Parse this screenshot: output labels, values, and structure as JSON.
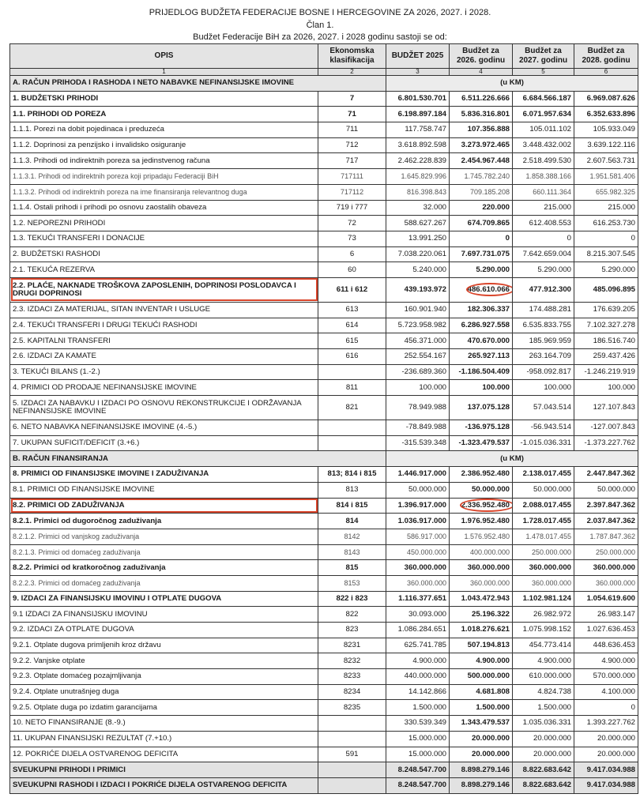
{
  "title": "PRIJEDLOG BUDŽETA FEDERACIJE BOSNE I HERCEGOVINE ZA 2026, 2027. i 2028.",
  "article": "Član 1.",
  "subtitle": "Budžet Federacije BiH za 2026, 2027. i 2028 godinu sastoji se od:",
  "highlight_color": "#d9452b",
  "headers": [
    "OPIS",
    "Ekonomska klasifikacija",
    "BUDŽET 2025",
    "Budžet za 2026. godinu",
    "Budžet za 2027. godinu",
    "Budžet za 2028. godinu"
  ],
  "column_numbers": [
    "1",
    "2",
    "3",
    "4",
    "5",
    "6"
  ],
  "rows": [
    {
      "type": "section",
      "label": "A. RAČUN PRIHODA I RASHODA I NETO NABAVKE NEFINANSIJSKE IMOVINE",
      "unit": "(u KM)"
    },
    {
      "style": "b",
      "label": "1.  BUDŽETSKI PRIHODI",
      "code": "7",
      "values": [
        "6.801.530.701",
        "6.511.226.666",
        "6.684.566.187",
        "6.969.087.626"
      ]
    },
    {
      "style": "b",
      "label": "1.1. PRIHODI OD POREZA",
      "code": "71",
      "values": [
        "6.198.897.184",
        "5.836.316.801",
        "6.071.957.634",
        "6.352.633.896"
      ]
    },
    {
      "style": "n",
      "label": "1.1.1. Porezi na dobit pojedinaca i preduzeća",
      "code": "711",
      "values": [
        "117.758.747",
        "107.356.888",
        "105.011.102",
        "105.933.049"
      ]
    },
    {
      "style": "n",
      "label": "1.1.2. Doprinosi za penzijsko i invalidsko osiguranje",
      "code": "712",
      "values": [
        "3.618.892.598",
        "3.273.972.465",
        "3.448.432.002",
        "3.639.122.116"
      ]
    },
    {
      "style": "n",
      "label": "1.1.3. Prihodi od indirektnih poreza sa jedinstvenog računa",
      "code": "717",
      "values": [
        "2.462.228.839",
        "2.454.967.448",
        "2.518.499.530",
        "2.607.563.731"
      ]
    },
    {
      "style": "l",
      "label": "1.1.3.1. Prihodi od indirektnih poreza koji pripadaju Federaciji BiH",
      "code": "717111",
      "values": [
        "1.645.829.996",
        "1.745.782.240",
        "1.858.388.166",
        "1.951.581.406"
      ]
    },
    {
      "style": "l",
      "label": "1.1.3.2. Prihodi od indirektnih poreza na ime finansiranja relevantnog duga",
      "code": "717112",
      "values": [
        "816.398.843",
        "709.185.208",
        "660.111.364",
        "655.982.325"
      ]
    },
    {
      "style": "n",
      "label": "1.1.4. Ostali prihodi i prihodi po osnovu zaostalih obaveza",
      "code": "719 i 777",
      "values": [
        "32.000",
        "220.000",
        "215.000",
        "215.000"
      ]
    },
    {
      "style": "n",
      "label": "1.2. NEPOREZNI PRIHODI",
      "code": "72",
      "values": [
        "588.627.267",
        "674.709.865",
        "612.408.553",
        "616.253.730"
      ]
    },
    {
      "style": "n",
      "label": "1.3. TEKUĆI TRANSFERI I DONACIJE",
      "code": "73",
      "values": [
        "13.991.250",
        "0",
        "0",
        "0"
      ]
    },
    {
      "style": "n",
      "label": "2. BUDŽETSKI RASHODI",
      "code": "6",
      "values": [
        "7.038.220.061",
        "7.697.731.075",
        "7.642.659.004",
        "8.215.307.545"
      ]
    },
    {
      "style": "n",
      "label": "2.1. TEKUĆA REZERVA",
      "code": "60",
      "values": [
        "5.240.000",
        "5.290.000",
        "5.290.000",
        "5.290.000"
      ]
    },
    {
      "style": "b",
      "tall": true,
      "highlighted": true,
      "label": "2.2. PLAĆE, NAKNADE TROŠKOVA ZAPOSLENIH, DOPRINOSI POSLODAVCA I DRUGI DOPRINOSI",
      "code": "611 i 612",
      "values": [
        "439.193.972",
        "486.610.066",
        "477.912.300",
        "485.096.895"
      ]
    },
    {
      "style": "n",
      "label": "2.3. IZDACI ZA MATERIJAL, SITAN INVENTAR I USLUGE",
      "code": "613",
      "values": [
        "160.901.940",
        "182.306.337",
        "174.488.281",
        "176.639.205"
      ]
    },
    {
      "style": "n",
      "label": "2.4. TEKUĆI TRANSFERI I DRUGI TEKUĆI RASHODI",
      "code": "614",
      "values": [
        "5.723.958.982",
        "6.286.927.558",
        "6.535.833.755",
        "7.102.327.278"
      ]
    },
    {
      "style": "n",
      "label": "2.5. KAPITALNI TRANSFERI",
      "code": "615",
      "values": [
        "456.371.000",
        "470.670.000",
        "185.969.959",
        "186.516.740"
      ]
    },
    {
      "style": "n",
      "label": "2.6. IZDACI ZA KAMATE",
      "code": "616",
      "values": [
        "252.554.167",
        "265.927.113",
        "263.164.709",
        "259.437.426"
      ]
    },
    {
      "style": "n",
      "label": "3. TEKUĆI BILANS (1.-2.)",
      "code": "",
      "values": [
        "-236.689.360",
        "-1.186.504.409",
        "-958.092.817",
        "-1.246.219.919"
      ]
    },
    {
      "style": "n",
      "label": "4. PRIMICI OD PRODAJE NEFINANSIJSKE IMOVINE",
      "code": "811",
      "values": [
        "100.000",
        "100.000",
        "100.000",
        "100.000"
      ]
    },
    {
      "style": "n",
      "tall": true,
      "label": "5. IZDACI ZA NABAVKU I IZDACI PO OSNOVU REKONSTRUKCIJE I ODRŽAVANJA NEFINANSIJSKE IMOVINE",
      "code": "821",
      "values": [
        "78.949.988",
        "137.075.128",
        "57.043.514",
        "127.107.843"
      ]
    },
    {
      "style": "n",
      "label": "6. NETO NABAVKA NEFINANSIJSKE IMOVINE (4.-5.)",
      "code": "",
      "values": [
        "-78.849.988",
        "-136.975.128",
        "-56.943.514",
        "-127.007.843"
      ]
    },
    {
      "style": "n",
      "label": "7. UKUPAN SUFICIT/DEFICIT (3.+6.)",
      "code": "",
      "values": [
        "-315.539.348",
        "-1.323.479.537",
        "-1.015.036.331",
        "-1.373.227.762"
      ]
    },
    {
      "type": "section",
      "label": "B. RAČUN FINANSIRANJA",
      "unit": "(u KM)"
    },
    {
      "style": "b",
      "label": "8. PRIMICI OD FINANSIJSKE IMOVINE I ZADUŽIVANJA",
      "code": "813; 814 i 815",
      "values": [
        "1.446.917.000",
        "2.386.952.480",
        "2.138.017.455",
        "2.447.847.362"
      ]
    },
    {
      "style": "n",
      "label": "8.1. PRIMICI OD FINANSIJSKE IMOVINE",
      "code": "813",
      "values": [
        "50.000.000",
        "50.000.000",
        "50.000.000",
        "50.000.000"
      ]
    },
    {
      "style": "b",
      "highlighted": true,
      "label": "8.2. PRIMICI OD ZADUŽIVANJA",
      "code": "814 i 815",
      "values": [
        "1.396.917.000",
        "2.336.952.480",
        "2.088.017.455",
        "2.397.847.362"
      ]
    },
    {
      "style": "b",
      "label": "8.2.1. Primici od dugoročnog zaduživanja",
      "code": "814",
      "values": [
        "1.036.917.000",
        "1.976.952.480",
        "1.728.017.455",
        "2.037.847.362"
      ]
    },
    {
      "style": "l",
      "label": "8.2.1.2. Primici od vanjskog zaduživanja",
      "code": "8142",
      "values": [
        "586.917.000",
        "1.576.952.480",
        "1.478.017.455",
        "1.787.847.362"
      ]
    },
    {
      "style": "l",
      "label": "8.2.1.3. Primici od domaćeg zaduživanja",
      "code": "8143",
      "values": [
        "450.000.000",
        "400.000.000",
        "250.000.000",
        "250.000.000"
      ]
    },
    {
      "style": "b",
      "label": "8.2.2. Primici od kratkoročnog zaduživanja",
      "code": "815",
      "values": [
        "360.000.000",
        "360.000.000",
        "360.000.000",
        "360.000.000"
      ]
    },
    {
      "style": "l",
      "label": "8.2.2.3. Primici od domaćeg zaduživanja",
      "code": "8153",
      "values": [
        "360.000.000",
        "360.000.000",
        "360.000.000",
        "360.000.000"
      ]
    },
    {
      "style": "b",
      "label": "9. IZDACI ZA FINANSIJSKU IMOVINU I OTPLATE DUGOVA",
      "code": "822 i 823",
      "values": [
        "1.116.377.651",
        "1.043.472.943",
        "1.102.981.124",
        "1.054.619.600"
      ]
    },
    {
      "style": "n",
      "label": "9.1 IZDACI ZA FINANSIJSKU IMOVINU",
      "code": "822",
      "values": [
        "30.093.000",
        "25.196.322",
        "26.982.972",
        "26.983.147"
      ]
    },
    {
      "style": "n",
      "label": "9.2. IZDACI ZA OTPLATE DUGOVA",
      "code": "823",
      "values": [
        "1.086.284.651",
        "1.018.276.621",
        "1.075.998.152",
        "1.027.636.453"
      ]
    },
    {
      "style": "n",
      "label": "9.2.1. Otplate dugova primljenih kroz državu",
      "code": "8231",
      "values": [
        "625.741.785",
        "507.194.813",
        "454.773.414",
        "448.636.453"
      ]
    },
    {
      "style": "n",
      "label": "9.2.2. Vanjske otplate",
      "code": "8232",
      "values": [
        "4.900.000",
        "4.900.000",
        "4.900.000",
        "4.900.000"
      ]
    },
    {
      "style": "n",
      "label": "9.2.3. Otplate domaćeg pozajmljivanja",
      "code": "8233",
      "values": [
        "440.000.000",
        "500.000.000",
        "610.000.000",
        "570.000.000"
      ]
    },
    {
      "style": "n",
      "label": "9.2.4. Otplate unutrašnjeg duga",
      "code": "8234",
      "values": [
        "14.142.866",
        "4.681.808",
        "4.824.738",
        "4.100.000"
      ]
    },
    {
      "style": "n",
      "label": "9.2.5. Otplate duga po izdatim garancijama",
      "code": "8235",
      "values": [
        "1.500.000",
        "1.500.000",
        "1.500.000",
        "0"
      ]
    },
    {
      "style": "n",
      "label": "10. NETO FINANSIRANJE (8.-9.)",
      "code": "",
      "values": [
        "330.539.349",
        "1.343.479.537",
        "1.035.036.331",
        "1.393.227.762"
      ]
    },
    {
      "style": "n",
      "label": "11. UKUPAN FINANSIJSKI REZULTAT (7.+10.)",
      "code": "",
      "values": [
        "15.000.000",
        "20.000.000",
        "20.000.000",
        "20.000.000"
      ]
    },
    {
      "style": "n",
      "label": "12. POKRIĆE DIJELA OSTVARENOG DEFICITA",
      "code": "591",
      "values": [
        "15.000.000",
        "20.000.000",
        "20.000.000",
        "20.000.000"
      ]
    },
    {
      "type": "total",
      "label": "SVEUKUPNI PRIHODI I PRIMICI",
      "code": "",
      "values": [
        "8.248.547.700",
        "8.898.279.146",
        "8.822.683.642",
        "9.417.034.988"
      ]
    },
    {
      "type": "total",
      "label": "SVEUKUPNI RASHODI I IZDACI I POKRIĆE DIJELA OSTVARENOG DEFICITA",
      "code": "",
      "values": [
        "8.248.547.700",
        "8.898.279.146",
        "8.822.683.642",
        "9.417.034.988"
      ]
    }
  ]
}
